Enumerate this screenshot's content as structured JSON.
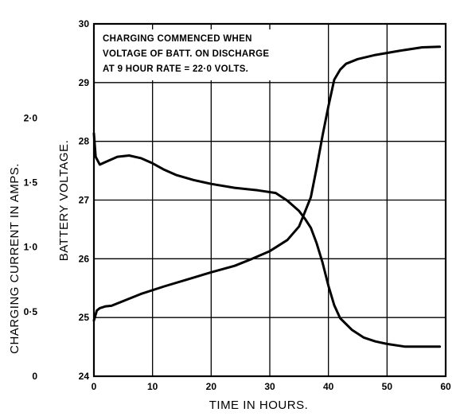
{
  "chart_data": {
    "type": "line",
    "xlabel": "TIME IN HOURS.",
    "ylabel_left": "CHARGING CURRENT IN AMPS.",
    "ylabel_right": "BATTERY VOLTAGE.",
    "annotation": [
      "CHARGING COMMENCED WHEN",
      "VOLTAGE OF BATT. ON DISCHARGE",
      "AT 9 HOUR RATE = 22·0 VOLTS."
    ],
    "x_ticks": [
      "0",
      "10",
      "20",
      "30",
      "40",
      "50",
      "60"
    ],
    "voltage_ticks": [
      "24",
      "25",
      "26",
      "27",
      "28",
      "29",
      "30"
    ],
    "current_ticks": [
      "0",
      "0·5",
      "1·0",
      "1·5",
      "2·0"
    ],
    "xlim": [
      0,
      60
    ],
    "voltage_lim": [
      24,
      30
    ],
    "current_lim": [
      0,
      2.73
    ],
    "grid": true,
    "series": [
      {
        "axis": "voltage",
        "x": [
          0,
          0.5,
          1,
          2,
          3,
          5,
          8,
          12,
          16,
          20,
          24,
          27,
          30,
          33,
          35,
          37,
          38,
          39,
          40,
          41,
          42,
          43,
          45,
          48,
          52,
          56,
          59
        ],
        "y": [
          24.95,
          25.12,
          25.16,
          25.19,
          25.2,
          25.28,
          25.4,
          25.53,
          25.65,
          25.77,
          25.88,
          26.0,
          26.13,
          26.32,
          26.55,
          27.05,
          27.55,
          28.1,
          28.6,
          29.05,
          29.22,
          29.32,
          29.4,
          29.47,
          29.54,
          29.6,
          29.61
        ]
      },
      {
        "axis": "current",
        "x": [
          0,
          0.3,
          1,
          2,
          4,
          6,
          8,
          10,
          12,
          14,
          17,
          20,
          24,
          28,
          31,
          33,
          35,
          36,
          37,
          38,
          39,
          40,
          41,
          42,
          44,
          46,
          48,
          50,
          53,
          56,
          59
        ],
        "y": [
          1.88,
          1.7,
          1.64,
          1.66,
          1.7,
          1.71,
          1.69,
          1.65,
          1.6,
          1.56,
          1.52,
          1.49,
          1.46,
          1.44,
          1.42,
          1.36,
          1.28,
          1.22,
          1.15,
          1.03,
          0.88,
          0.7,
          0.55,
          0.45,
          0.36,
          0.3,
          0.27,
          0.25,
          0.23,
          0.23,
          0.23
        ]
      }
    ]
  }
}
